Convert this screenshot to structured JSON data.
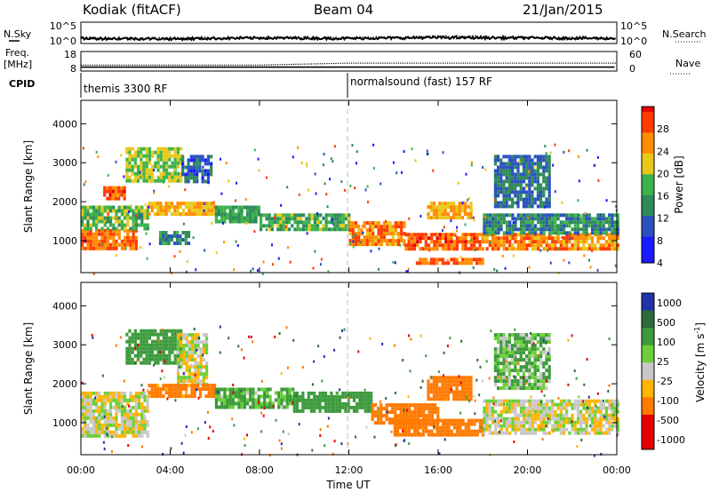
{
  "header": {
    "station": "Kodiak (fitACF)",
    "beam": "Beam 04",
    "date": "21/Jan/2015"
  },
  "noise_panel": {
    "left_label": "N.Sky",
    "right_label": "N.Search",
    "left_ticks": [
      "10^5",
      "10^0"
    ],
    "right_ticks": [
      "10^5",
      "10^0"
    ]
  },
  "freq_panel": {
    "left_label_line1": "Freq.",
    "left_label_line2": "[MHz]",
    "left_ticks": [
      "18",
      "8"
    ],
    "right_ticks": [
      "60",
      "0"
    ],
    "right_label": "Nave"
  },
  "cpid_panel": {
    "label": "CPID",
    "segments": [
      {
        "text": "themis 3300 RF",
        "start_hour": 0
      },
      {
        "text": "normalsound (fast) 157 RF",
        "start_hour": 12
      }
    ]
  },
  "power_panel": {
    "ylabel": "Slant Range [km]",
    "yticks": [
      "4000",
      "3000",
      "2000",
      "1000"
    ],
    "colorbar_label": "Power [dB]",
    "colorbar_ticks": [
      "28",
      "24",
      "20",
      "16",
      "12",
      "8",
      "4"
    ]
  },
  "velocity_panel": {
    "ylabel": "Slant Range [km]",
    "yticks": [
      "4000",
      "3000",
      "2000",
      "1000"
    ],
    "colorbar_label": "Velocity [m s",
    "colorbar_label_sup": "-1",
    "colorbar_label_end": "]",
    "colorbar_ticks": [
      "1000",
      "500",
      "100",
      "25",
      "-25",
      "-100",
      "-500",
      "-1000"
    ]
  },
  "xaxis": {
    "label": "Time UT",
    "ticks": [
      "00:00",
      "04:00",
      "08:00",
      "12:00",
      "16:00",
      "20:00",
      "00:00"
    ]
  },
  "chart_data": [
    {
      "type": "heatmap",
      "title": "",
      "xlabel": "Time UT",
      "ylabel": "Slant Range [km]",
      "xlim": [
        0,
        24
      ],
      "ylim": [
        180,
        4600
      ],
      "value_label": "Power [dB]",
      "value_range": [
        0,
        30
      ],
      "regions": [
        {
          "t0": 0.0,
          "t1": 2.5,
          "r0": 800,
          "r1": 1300,
          "value": 26
        },
        {
          "t0": 0.0,
          "t1": 3.0,
          "r0": 1300,
          "r1": 1900,
          "value": 16
        },
        {
          "t0": 1.0,
          "t1": 2.0,
          "r0": 2100,
          "r1": 2400,
          "value": 27
        },
        {
          "t0": 2.0,
          "t1": 4.5,
          "r0": 2500,
          "r1": 3400,
          "value": 18
        },
        {
          "t0": 3.0,
          "t1": 6.0,
          "r0": 1700,
          "r1": 2000,
          "value": 22
        },
        {
          "t0": 4.5,
          "t1": 5.8,
          "r0": 2500,
          "r1": 3200,
          "value": 9
        },
        {
          "t0": 3.5,
          "t1": 4.8,
          "r0": 950,
          "r1": 1250,
          "value": 11
        },
        {
          "t0": 6.0,
          "t1": 8.0,
          "r0": 1500,
          "r1": 1900,
          "value": 14
        },
        {
          "t0": 8.0,
          "t1": 12.0,
          "r0": 1300,
          "r1": 1700,
          "value": 15
        },
        {
          "t0": 12.0,
          "t1": 14.5,
          "r0": 900,
          "r1": 1500,
          "value": 25
        },
        {
          "t0": 14.5,
          "t1": 18.0,
          "r0": 750,
          "r1": 1200,
          "value": 27
        },
        {
          "t0": 15.5,
          "t1": 17.5,
          "r0": 1600,
          "r1": 2000,
          "value": 22
        },
        {
          "t0": 18.0,
          "t1": 24.0,
          "r0": 800,
          "r1": 1200,
          "value": 24
        },
        {
          "t0": 18.0,
          "t1": 24.0,
          "r0": 1200,
          "r1": 1700,
          "value": 12
        },
        {
          "t0": 18.5,
          "t1": 21.0,
          "r0": 1900,
          "r1": 3200,
          "value": 10
        },
        {
          "t0": 15.0,
          "t1": 18.0,
          "r0": 420,
          "r1": 560,
          "value": 26
        }
      ]
    },
    {
      "type": "heatmap",
      "title": "",
      "xlabel": "Time UT",
      "ylabel": "Slant Range [km]",
      "xlim": [
        0,
        24
      ],
      "ylim": [
        180,
        4600
      ],
      "value_label": "Velocity [m s-1]",
      "value_range": [
        -1000,
        1000
      ],
      "regions": [
        {
          "t0": 0.0,
          "t1": 3.0,
          "r0": 700,
          "r1": 1800,
          "value": 0
        },
        {
          "t0": 2.0,
          "t1": 4.5,
          "r0": 2500,
          "r1": 3400,
          "value": 120
        },
        {
          "t0": 4.3,
          "t1": 5.6,
          "r0": 2000,
          "r1": 3300,
          "value": 0
        },
        {
          "t0": 3.0,
          "t1": 6.0,
          "r0": 1700,
          "r1": 2000,
          "value": -150
        },
        {
          "t0": 6.0,
          "t1": 9.5,
          "r0": 1400,
          "r1": 1900,
          "value": 80
        },
        {
          "t0": 9.5,
          "t1": 13.0,
          "r0": 1300,
          "r1": 1800,
          "value": 200
        },
        {
          "t0": 13.0,
          "t1": 16.0,
          "r0": 1000,
          "r1": 1500,
          "value": -180
        },
        {
          "t0": 14.0,
          "t1": 18.0,
          "r0": 650,
          "r1": 1100,
          "value": -300
        },
        {
          "t0": 15.5,
          "t1": 17.5,
          "r0": 1600,
          "r1": 2200,
          "value": -200
        },
        {
          "t0": 18.0,
          "t1": 24.0,
          "r0": 700,
          "r1": 1600,
          "value": 0
        },
        {
          "t0": 18.5,
          "t1": 21.0,
          "r0": 1900,
          "r1": 3300,
          "value": 60
        }
      ]
    },
    {
      "type": "line",
      "title": "",
      "series": [
        {
          "name": "N.Sky",
          "values_log10": [
            1.2,
            1.1,
            1.3,
            1.2,
            1.4,
            1.3,
            1.2
          ]
        },
        {
          "name": "N.Search",
          "values_log10": [
            1.4,
            1.3,
            1.5,
            1.4,
            1.8,
            1.6,
            1.4
          ]
        }
      ],
      "x": [
        0,
        4,
        8,
        12,
        16,
        20,
        24
      ],
      "ylim_log10": [
        0,
        5
      ]
    },
    {
      "type": "line",
      "title": "",
      "series": [
        {
          "name": "Freq.",
          "values": [
            10,
            10,
            10,
            10,
            10,
            10,
            10
          ]
        },
        {
          "name": "Nave",
          "values": [
            20,
            20,
            20,
            26,
            26,
            26,
            26
          ]
        }
      ],
      "x": [
        0,
        4,
        8,
        12,
        16,
        20,
        24
      ],
      "ylim": [
        8,
        18
      ]
    }
  ]
}
